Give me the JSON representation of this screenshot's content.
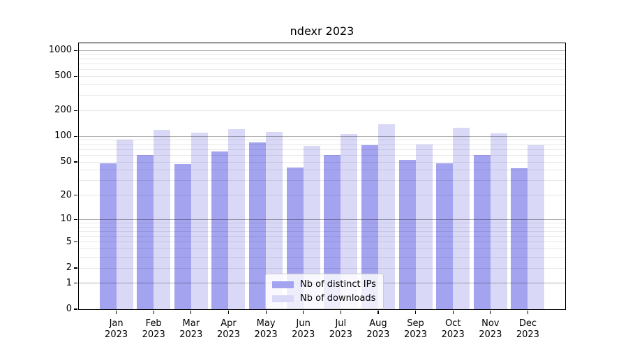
{
  "chart_data": {
    "type": "bar",
    "title": "ndexr 2023",
    "x_months": [
      "Jan",
      "Feb",
      "Mar",
      "Apr",
      "May",
      "Jun",
      "Jul",
      "Aug",
      "Sep",
      "Oct",
      "Nov",
      "Dec"
    ],
    "x_year": "2023",
    "categories": [
      "Jan 2023",
      "Feb 2023",
      "Mar 2023",
      "Apr 2023",
      "May 2023",
      "Jun 2023",
      "Jul 2023",
      "Aug 2023",
      "Sep 2023",
      "Oct 2023",
      "Nov 2023",
      "Dec 2023"
    ],
    "series": [
      {
        "name": "Nb of distinct IPs",
        "color": "#a3a3f0",
        "values": [
          48,
          60,
          47,
          67,
          85,
          43,
          60,
          79,
          53,
          48,
          60,
          42
        ]
      },
      {
        "name": "Nb of downloads",
        "color": "#d9d9f7",
        "values": [
          92,
          120,
          110,
          121,
          113,
          77,
          106,
          138,
          80,
          125,
          108,
          79
        ]
      }
    ],
    "xlabel": "",
    "ylabel": "",
    "yscale": "log1p",
    "yticks": [
      0,
      1,
      2,
      5,
      10,
      20,
      50,
      100,
      200,
      500,
      1000
    ],
    "ylim": [
      0,
      1210
    ],
    "grid": "both",
    "grid_over_bars": true,
    "legend_position": "lower center"
  },
  "colors": {
    "background": "#ffffff",
    "spine": "#000000",
    "text": "#000000",
    "major_grid": "rgba(0,0,0,0.31)",
    "minor_grid": "rgba(0,0,0,0.09)",
    "legend_bg": "rgba(255,255,255,0.8)",
    "legend_border": "#cccccc"
  }
}
